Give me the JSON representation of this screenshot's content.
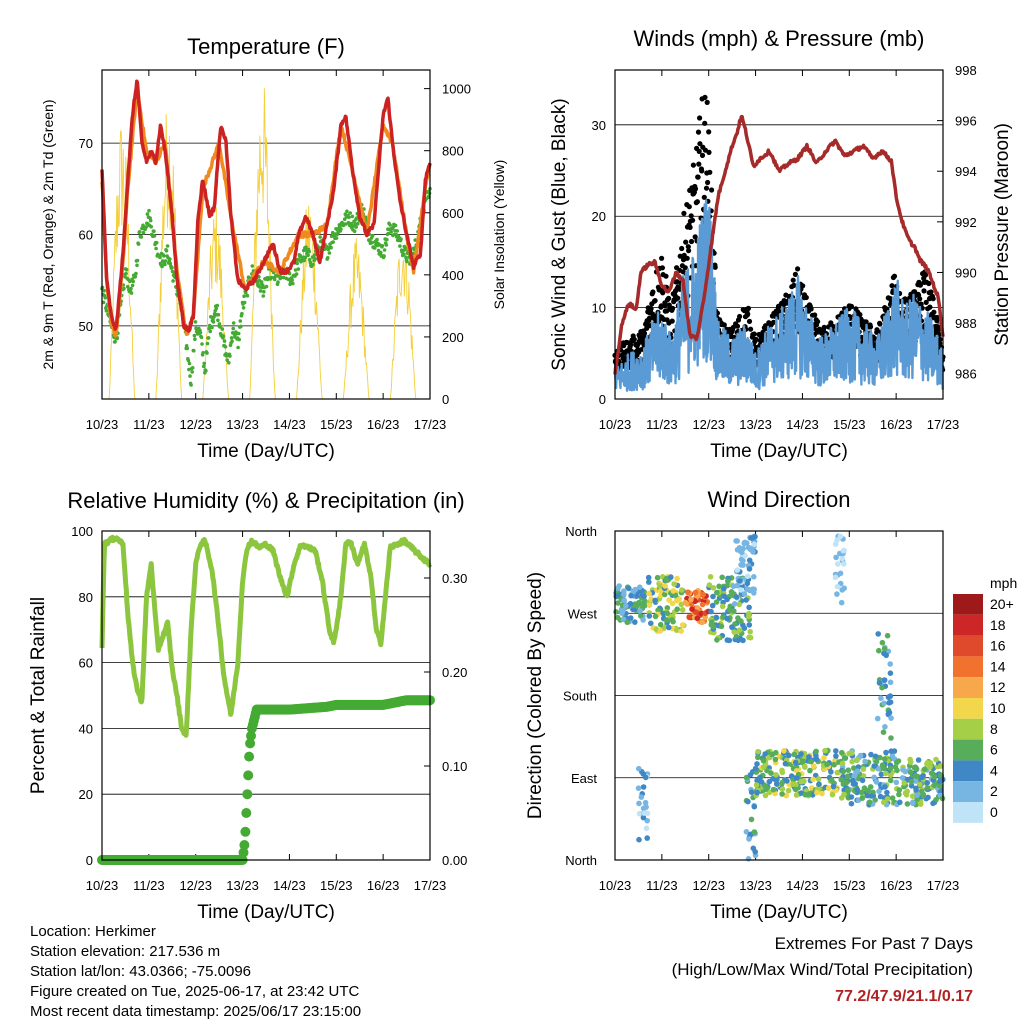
{
  "chart_data": [
    {
      "type": "line",
      "title": "Temperature (F)",
      "xlabel": "Time (Day/UTC)",
      "ylabel": "2m & 9m T (Red, Orange) & 2m Td (Green)",
      "y2label": "Solar Insolation (Yellow)",
      "xlim": [
        0,
        7
      ],
      "ylim": [
        42,
        78
      ],
      "y2lim": [
        0,
        1060
      ],
      "x_tick_labels": [
        "10/23",
        "11/23",
        "12/23",
        "13/23",
        "14/23",
        "15/23",
        "16/23",
        "17/23"
      ],
      "y_ticks": [
        50,
        60,
        70
      ],
      "y2_ticks": [
        0,
        200,
        400,
        600,
        800,
        1000
      ],
      "series": [
        {
          "name": "2m T",
          "color": "#cc2222",
          "x": [
            0,
            0.1,
            0.2,
            0.3,
            0.45,
            0.55,
            0.65,
            0.75,
            0.85,
            0.95,
            1.05,
            1.15,
            1.25,
            1.35,
            1.5,
            1.6,
            1.75,
            1.85,
            1.95,
            2.05,
            2.15,
            2.3,
            2.4,
            2.5,
            2.55,
            2.65,
            2.75,
            2.9,
            3.05,
            3.25,
            3.45,
            3.65,
            3.8,
            3.95,
            4.1,
            4.2,
            4.35,
            4.5,
            4.65,
            4.8,
            4.95,
            5.1,
            5.2,
            5.35,
            5.5,
            5.65,
            5.8,
            5.9,
            6.0,
            6.1,
            6.2,
            6.35,
            6.5,
            6.65,
            6.8,
            6.9,
            7.0
          ],
          "y": [
            67,
            55,
            51,
            49.5,
            58,
            66,
            73,
            77,
            70,
            68,
            69,
            68,
            72,
            69,
            62,
            55,
            50,
            49.5,
            51,
            62,
            66,
            62,
            63,
            70,
            72,
            70,
            62,
            55,
            54,
            55,
            57,
            59,
            56,
            56,
            57,
            60,
            62,
            60,
            57,
            61,
            65,
            72,
            73,
            67,
            62,
            60,
            61,
            67,
            73,
            75,
            70,
            64,
            60,
            56.5,
            58,
            66,
            68
          ]
        },
        {
          "name": "9m T",
          "color": "#f08a1e",
          "x": [
            0,
            0.1,
            0.2,
            0.3,
            0.45,
            0.55,
            0.75,
            0.95,
            1.15,
            1.35,
            1.6,
            1.8,
            1.95,
            2.15,
            2.5,
            2.75,
            3.05,
            3.45,
            3.8,
            4.2,
            4.5,
            4.8,
            5.1,
            5.35,
            5.65,
            6.0,
            6.2,
            6.5,
            6.65,
            6.9,
            7.0
          ],
          "y": [
            66,
            55,
            50,
            49,
            57,
            65,
            76,
            69,
            68,
            70,
            56,
            49,
            51,
            65,
            70,
            62,
            54,
            57,
            56,
            60,
            60,
            61,
            72,
            67,
            60,
            72,
            70,
            60,
            56,
            65,
            68
          ]
        },
        {
          "name": "2m Td",
          "color": "#44aa33",
          "x": [
            0,
            0.1,
            0.2,
            0.3,
            0.4,
            0.5,
            0.6,
            0.7,
            0.8,
            0.9,
            1.0,
            1.1,
            1.2,
            1.3,
            1.4,
            1.5,
            1.6,
            1.7,
            1.8,
            1.9,
            2.0,
            2.1,
            2.2,
            2.3,
            2.45,
            2.6,
            2.7,
            2.8,
            2.9,
            3.0,
            3.1,
            3.2,
            3.3,
            3.45,
            3.6,
            3.75,
            3.9,
            4.05,
            4.2,
            4.35,
            4.5,
            4.65,
            4.8,
            4.95,
            5.1,
            5.25,
            5.4,
            5.55,
            5.7,
            5.85,
            6.0,
            6.15,
            6.3,
            6.45,
            6.6,
            6.75,
            6.9,
            7.0
          ],
          "y": [
            54,
            52,
            50,
            48.5,
            52,
            56,
            54,
            55,
            60,
            61,
            62,
            60,
            58,
            57,
            58,
            56,
            54,
            52,
            48,
            44,
            50,
            49,
            45,
            50,
            52,
            48,
            46,
            50,
            48,
            52,
            54,
            56,
            55,
            54,
            56,
            55,
            56,
            55,
            57,
            58,
            57,
            59,
            58,
            60,
            61,
            62,
            61,
            63,
            60,
            59,
            58,
            61,
            60,
            58,
            57,
            60,
            64,
            65
          ]
        },
        {
          "name": "Solar Insolation",
          "color": "#f5cf3a",
          "axis": "y2",
          "days": [
            0,
            1,
            2,
            3,
            4,
            5,
            6
          ],
          "peaks": [
            930,
            1000,
            640,
            1050,
            680,
            520,
            580
          ]
        }
      ]
    },
    {
      "type": "line",
      "title": "Winds (mph) & Pressure (mb)",
      "xlabel": "Time (Day/UTC)",
      "ylabel": "Sonic Wind & Gust (Blue, Black)",
      "y2label": "Station Pressure (Maroon)",
      "xlim": [
        0,
        7
      ],
      "ylim": [
        0,
        36
      ],
      "y2lim": [
        985,
        998
      ],
      "x_tick_labels": [
        "10/23",
        "11/23",
        "12/23",
        "13/23",
        "14/23",
        "15/23",
        "16/23",
        "17/23"
      ],
      "y_ticks": [
        0,
        10,
        20,
        30
      ],
      "y2_ticks": [
        986,
        988,
        990,
        992,
        994,
        996,
        998
      ],
      "series": [
        {
          "name": "Sonic Wind",
          "color": "#5b9bd5",
          "x": [
            0,
            0.3,
            0.6,
            0.8,
            1.0,
            1.2,
            1.45,
            1.7,
            1.9,
            2.0,
            2.2,
            2.5,
            2.8,
            3.0,
            3.3,
            3.6,
            3.9,
            4.1,
            4.4,
            4.7,
            5.0,
            5.3,
            5.6,
            5.8,
            6.0,
            6.2,
            6.4,
            6.6,
            6.8,
            7.0
          ],
          "y": [
            2,
            3,
            3.5,
            5,
            6,
            4,
            8,
            10,
            13,
            14,
            5,
            4,
            5,
            3,
            5,
            6,
            8,
            6,
            4,
            5,
            6,
            5,
            4,
            6,
            8,
            6,
            7,
            6,
            5,
            3
          ]
        },
        {
          "name": "Gust",
          "color": "#000000",
          "x": [
            0,
            0.3,
            0.6,
            0.8,
            1.0,
            1.2,
            1.45,
            1.7,
            1.85,
            1.95,
            2.05,
            2.2,
            2.5,
            2.8,
            3.0,
            3.3,
            3.6,
            3.9,
            4.1,
            4.4,
            4.7,
            5.0,
            5.3,
            5.6,
            5.8,
            6.0,
            6.2,
            6.4,
            6.6,
            6.8,
            7.0
          ],
          "y": [
            5,
            6,
            7,
            12,
            15,
            9,
            18,
            24,
            30,
            32,
            22,
            8,
            7,
            10,
            6,
            8,
            10,
            13,
            10,
            7,
            8,
            10,
            8,
            7,
            10,
            13,
            10,
            11,
            13,
            10,
            5
          ]
        },
        {
          "name": "Station Pressure",
          "color": "#a52a2a",
          "axis": "y2",
          "x": [
            0,
            0.15,
            0.3,
            0.45,
            0.55,
            0.7,
            0.85,
            1.0,
            1.15,
            1.3,
            1.45,
            1.6,
            1.75,
            1.9,
            2.05,
            2.2,
            2.35,
            2.5,
            2.6,
            2.7,
            2.8,
            2.95,
            3.1,
            3.3,
            3.5,
            3.7,
            3.9,
            4.1,
            4.3,
            4.5,
            4.7,
            4.9,
            5.1,
            5.3,
            5.5,
            5.7,
            5.8,
            5.9,
            6.0,
            6.1,
            6.2,
            6.3,
            6.4,
            6.5,
            6.6,
            6.7,
            6.8,
            6.9,
            7.0
          ],
          "y": [
            986,
            988,
            988.8,
            988.5,
            990,
            990.3,
            990.4,
            989.5,
            989.2,
            990,
            989.7,
            987.5,
            987.4,
            989,
            991,
            993,
            994,
            995,
            995.5,
            996.2,
            995.5,
            994.2,
            994.5,
            994.8,
            994,
            994.3,
            994.5,
            995.0,
            994.3,
            994.8,
            995.2,
            994.6,
            994.8,
            995.0,
            994.5,
            994.8,
            994.6,
            994.4,
            993.0,
            992.2,
            991.6,
            991.2,
            991.0,
            990.5,
            990.3,
            990.0,
            989.5,
            989.0,
            987.5
          ]
        }
      ]
    },
    {
      "type": "line",
      "title": "Relative Humidity (%) & Precipitation (in)",
      "xlabel": "Time (Day/UTC)",
      "ylabel": "Percent & Total Rainfall",
      "xlim": [
        0,
        7
      ],
      "ylim": [
        0,
        100
      ],
      "y2lim": [
        0,
        0.35
      ],
      "x_tick_labels": [
        "10/23",
        "11/23",
        "12/23",
        "13/23",
        "14/23",
        "15/23",
        "16/23",
        "17/23"
      ],
      "y_ticks": [
        0,
        20,
        40,
        60,
        80,
        100
      ],
      "y2_tick_labels": [
        "0.00",
        "0.10",
        "0.20",
        "0.30"
      ],
      "y2_tick_values": [
        0,
        0.1,
        0.2,
        0.3
      ],
      "series": [
        {
          "name": "Relative Humidity",
          "color": "#8cc63f",
          "x": [
            0,
            0.05,
            0.15,
            0.3,
            0.45,
            0.55,
            0.65,
            0.75,
            0.85,
            0.95,
            1.05,
            1.15,
            1.2,
            1.3,
            1.4,
            1.5,
            1.6,
            1.7,
            1.8,
            1.9,
            2.0,
            2.1,
            2.2,
            2.35,
            2.5,
            2.6,
            2.75,
            2.9,
            3.0,
            3.1,
            3.2,
            3.35,
            3.5,
            3.65,
            3.8,
            3.95,
            4.1,
            4.25,
            4.4,
            4.55,
            4.7,
            4.85,
            4.95,
            5.1,
            5.2,
            5.3,
            5.45,
            5.6,
            5.75,
            5.85,
            5.95,
            6.05,
            6.15,
            6.3,
            6.45,
            6.6,
            6.75,
            6.9,
            7.0
          ],
          "y": [
            65,
            96,
            97,
            98,
            96,
            75,
            60,
            52,
            48,
            80,
            90,
            72,
            64,
            68,
            72,
            58,
            50,
            40,
            38,
            70,
            90,
            96,
            97,
            88,
            70,
            56,
            44,
            60,
            85,
            95,
            97,
            95,
            96,
            94,
            86,
            80,
            90,
            96,
            95,
            94,
            85,
            70,
            66,
            80,
            96,
            97,
            90,
            96,
            85,
            70,
            66,
            80,
            95,
            96,
            97,
            95,
            93,
            91,
            90
          ]
        },
        {
          "name": "Total Rainfall",
          "color": "#44aa33",
          "axis": "y2",
          "x": [
            0,
            3.0,
            3.05,
            3.1,
            3.15,
            3.2,
            3.3,
            4.0,
            4.8,
            5.0,
            5.5,
            6.0,
            6.2,
            6.5,
            7.0
          ],
          "y": [
            0,
            0.0,
            0.02,
            0.07,
            0.12,
            0.14,
            0.16,
            0.16,
            0.163,
            0.165,
            0.165,
            0.165,
            0.167,
            0.17,
            0.17
          ]
        }
      ]
    },
    {
      "type": "scatter",
      "title": "Wind Direction",
      "xlabel": "Time (Day/UTC)",
      "ylabel": "Direction (Colored By Speed)",
      "xlim": [
        0,
        7
      ],
      "ylim": [
        0,
        360
      ],
      "x_tick_labels": [
        "10/23",
        "11/23",
        "12/23",
        "13/23",
        "14/23",
        "15/23",
        "16/23",
        "17/23"
      ],
      "y_tick_labels": [
        "North",
        "West",
        "South",
        "East",
        "North"
      ],
      "y_tick_values": [
        360,
        270,
        180,
        90,
        0
      ],
      "colorbar": {
        "title": "mph",
        "labels": [
          "20+",
          "18",
          "16",
          "14",
          "12",
          "10",
          "8",
          "6",
          "4",
          "2",
          "0"
        ],
        "colors": [
          "#9e1a1a",
          "#cc2626",
          "#e04a2c",
          "#f0722e",
          "#f7a84a",
          "#f2d74d",
          "#a6cf48",
          "#57ad5a",
          "#3f88c5",
          "#77b5e3",
          "#bfe3f7"
        ]
      },
      "clusters": [
        {
          "x0": 0,
          "x1": 0.65,
          "dir_lo": 260,
          "dir_hi": 300,
          "speed": [
            2,
            7
          ]
        },
        {
          "x0": 0.5,
          "x1": 0.7,
          "dir_lo": 20,
          "dir_hi": 100,
          "speed": [
            0,
            4
          ]
        },
        {
          "x0": 0.7,
          "x1": 1.5,
          "dir_lo": 250,
          "dir_hi": 310,
          "speed": [
            4,
            11
          ]
        },
        {
          "x0": 1.5,
          "x1": 2.0,
          "dir_lo": 260,
          "dir_hi": 295,
          "speed": [
            11,
            19
          ]
        },
        {
          "x0": 2.0,
          "x1": 2.9,
          "dir_lo": 240,
          "dir_hi": 310,
          "speed": [
            3,
            9
          ]
        },
        {
          "x0": 2.5,
          "x1": 3.0,
          "dir_lo": 280,
          "dir_hi": 355,
          "speed": [
            0,
            4
          ]
        },
        {
          "x0": 2.8,
          "x1": 3.0,
          "dir_lo": 0,
          "dir_hi": 100,
          "speed": [
            2,
            6
          ]
        },
        {
          "x0": 3.0,
          "x1": 4.8,
          "dir_lo": 70,
          "dir_hi": 120,
          "speed": [
            3,
            10
          ]
        },
        {
          "x0": 4.8,
          "x1": 6.0,
          "dir_lo": 60,
          "dir_hi": 120,
          "speed": [
            2,
            9
          ]
        },
        {
          "x0": 5.6,
          "x1": 5.9,
          "dir_lo": 130,
          "dir_hi": 250,
          "speed": [
            2,
            6
          ]
        },
        {
          "x0": 6.0,
          "x1": 7.0,
          "dir_lo": 60,
          "dir_hi": 110,
          "speed": [
            2,
            9
          ]
        },
        {
          "x0": 4.7,
          "x1": 4.9,
          "dir_lo": 280,
          "dir_hi": 355,
          "speed": [
            0,
            3
          ]
        }
      ]
    }
  ],
  "footer": {
    "location": "Location: Herkimer",
    "elevation": "Station elevation: 217.536 m",
    "latlon": "Station lat/lon: 43.0366; -75.0096",
    "created": "Figure created on Tue, 2025-06-17, at 23:42 UTC",
    "timestamp": "Most recent data timestamp: 2025/06/17 23:15:00"
  },
  "extremes": {
    "title": "Extremes For Past 7 Days",
    "subtitle": "(High/Low/Max Wind/Total Precipitation)",
    "values": "77.2/47.9/21.1/0.17"
  }
}
